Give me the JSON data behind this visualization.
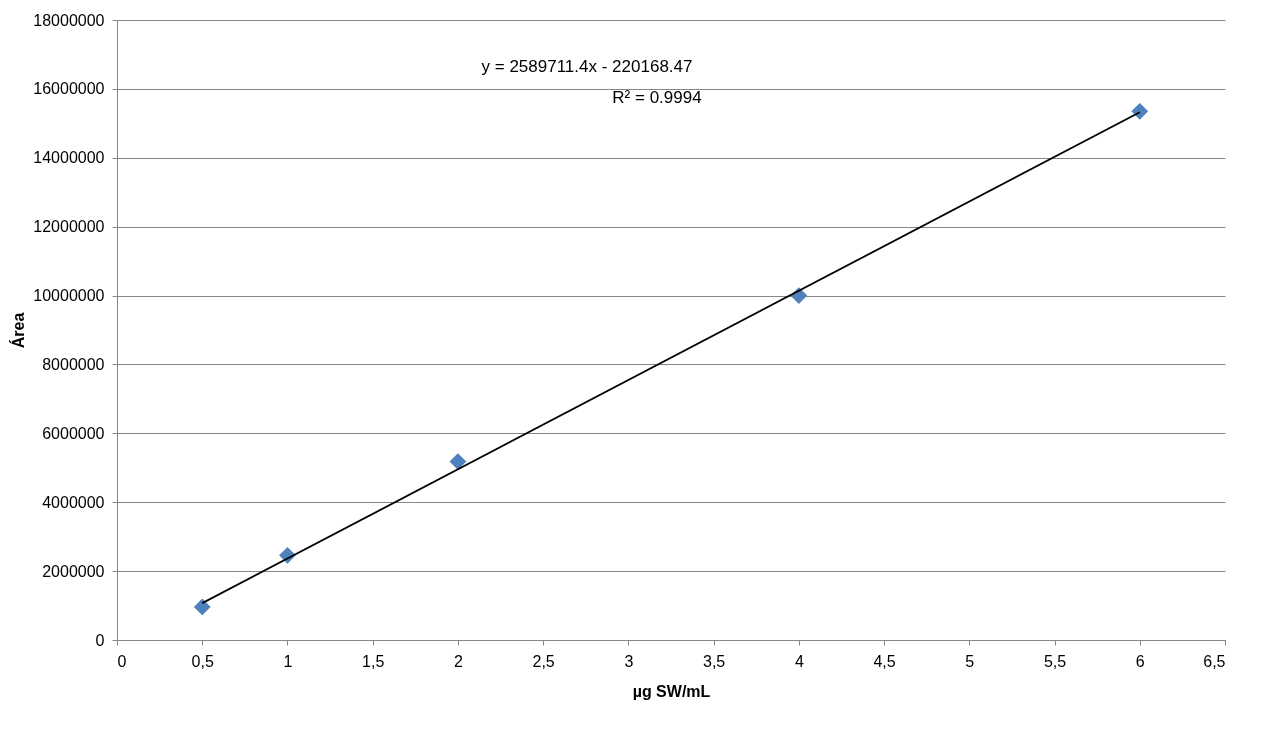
{
  "chart_data": {
    "type": "scatter",
    "xlabel": "µg SW/mL",
    "ylabel": "Área",
    "series": [
      {
        "color": "#4f81bd",
        "marker": "diamond",
        "x": [
          0.5,
          1,
          2,
          4,
          6
        ],
        "values": [
          960000,
          2460000,
          5180000,
          10000000,
          15350000
        ]
      },
      {
        "type": "line",
        "color": "#000000",
        "marker": "none",
        "line_style": "solid",
        "x": [
          0.5,
          6
        ],
        "values": [
          1070000,
          15320000
        ]
      }
    ],
    "xlim": [
      0,
      6.5
    ],
    "xticks": [
      0,
      {
        "value": 0.5,
        "label": "0,5"
      },
      1,
      {
        "value": 1.5,
        "label": "1,5"
      },
      2,
      {
        "value": 2.5,
        "label": "2,5"
      },
      3,
      {
        "value": 3.5,
        "label": "3,5"
      },
      4,
      {
        "value": 4.5,
        "label": "4,5"
      },
      5,
      {
        "value": 5.5,
        "label": "5,5"
      },
      6,
      {
        "value": 6.5,
        "label": "6,5"
      }
    ],
    "ylim": [
      0,
      18000000
    ],
    "yticks": [
      0,
      2000000,
      4000000,
      6000000,
      8000000,
      10000000,
      12000000,
      14000000,
      16000000,
      18000000
    ],
    "grid": "y",
    "annotations": [
      "y = 2589711.4x - 220168.47",
      "R² = 0.9994"
    ]
  }
}
